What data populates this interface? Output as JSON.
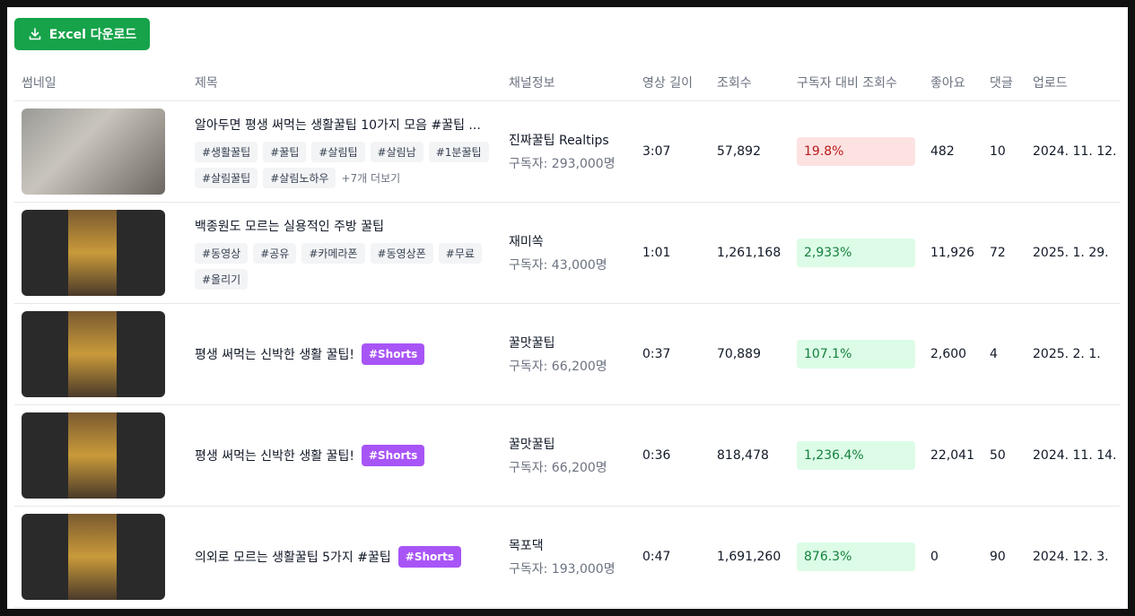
{
  "button": {
    "label": "Excel 다운로드"
  },
  "table": {
    "columns": [
      "썸네일",
      "제목",
      "채널정보",
      "영상 길이",
      "조회수",
      "구독자 대비 조회수",
      "좋아요",
      "댓글",
      "업로드"
    ],
    "rows": [
      {
        "title": "알아두면 평생 써먹는 생활꿀팁 10가지 모음 #꿀팁 ...",
        "tags": [
          "#생활꿀팁",
          "#꿀팁",
          "#살림팁",
          "#살림남",
          "#1분꿀팁",
          "#살림꿀팁",
          "#살림노하우"
        ],
        "more": "+7개 더보기",
        "channel": "진짜꿀팁 Realtips",
        "subscribers": "구독자: 293,000명",
        "length": "3:07",
        "views": "57,892",
        "ratio": "19.8%",
        "ratio_bg": "#fde2e2",
        "ratio_color": "#b91c1c",
        "likes": "482",
        "comments": "10",
        "upload": "2024. 11. 12."
      },
      {
        "title": "백종원도 모르는 실용적인 주방 꿀팁",
        "tags": [
          "#동영상",
          "#공유",
          "#카메라폰",
          "#동영상폰",
          "#무료",
          "#올리기"
        ],
        "channel": "재미쏙",
        "subscribers": "구독자: 43,000명",
        "length": "1:01",
        "views": "1,261,168",
        "ratio": "2,933%",
        "ratio_bg": "#dcfce7",
        "ratio_color": "#15803d",
        "likes": "11,926",
        "comments": "72",
        "upload": "2025. 1. 29."
      },
      {
        "title": "평생 써먹는 신박한 생활 꿀팁!",
        "badge": "#Shorts",
        "channel": "꿀맛꿀팁",
        "subscribers": "구독자: 66,200명",
        "length": "0:37",
        "views": "70,889",
        "ratio": "107.1%",
        "ratio_bg": "#dcfce7",
        "ratio_color": "#15803d",
        "likes": "2,600",
        "comments": "4",
        "upload": "2025. 2. 1."
      },
      {
        "title": "평생 써먹는 신박한 생활 꿀팁!",
        "badge": "#Shorts",
        "channel": "꿀맛꿀팁",
        "subscribers": "구독자: 66,200명",
        "length": "0:36",
        "views": "818,478",
        "ratio": "1,236.4%",
        "ratio_bg": "#dcfce7",
        "ratio_color": "#15803d",
        "likes": "22,041",
        "comments": "50",
        "upload": "2024. 11. 14."
      },
      {
        "title": "의외로 모르는 생활꿀팁 5가지 #꿀팁",
        "badge": "#Shorts",
        "channel": "목포댁",
        "subscribers": "구독자: 193,000명",
        "length": "0:47",
        "views": "1,691,260",
        "ratio": "876.3%",
        "ratio_bg": "#dcfce7",
        "ratio_color": "#15803d",
        "likes": "0",
        "comments": "90",
        "upload": "2024. 12. 3."
      }
    ]
  }
}
